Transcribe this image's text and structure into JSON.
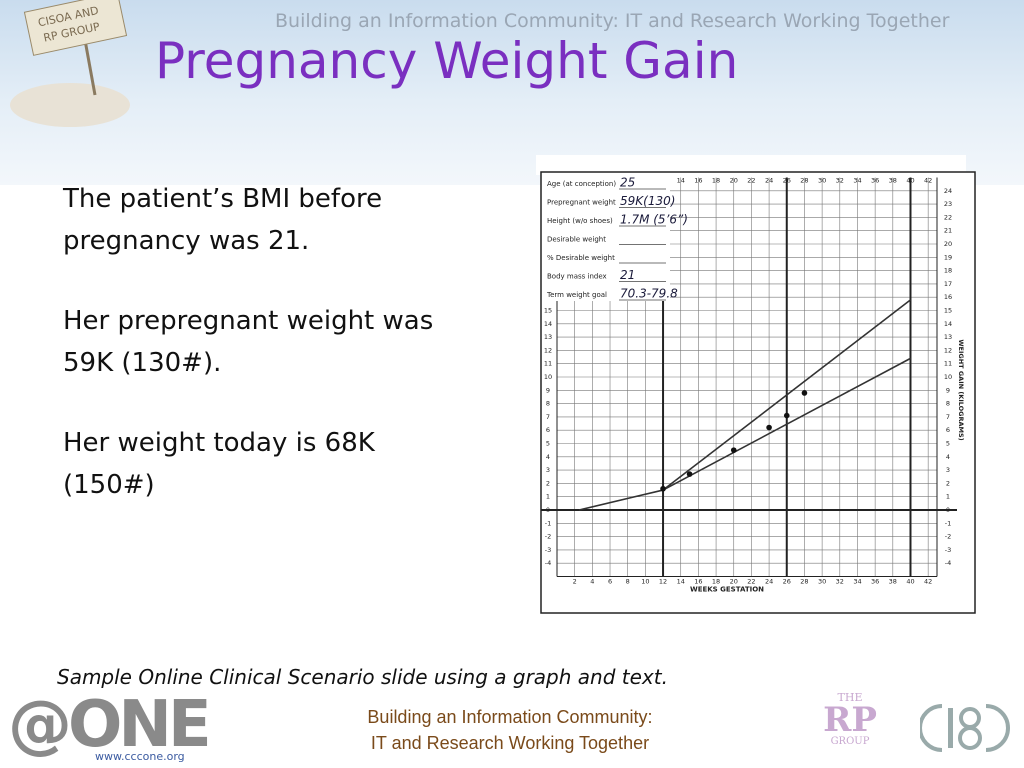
{
  "header_banner": "Building an Information Community:  IT and Research Working Together",
  "sign_text": [
    "CISOA AND",
    "RP GROUP"
  ],
  "title": "Pregnancy Weight Gain",
  "body": [
    "The patient’s BMI before pregnancy was 21.",
    "Her prepregnant weight was 59K (130#).",
    "Her weight today is 68K (150#)"
  ],
  "caption": "Sample Online Clinical Scenario slide using a graph and text.",
  "footer": [
    "Building an Information Community:",
    "IT and Research Working Together"
  ],
  "logos": {
    "one": "@ONE",
    "one_url": "www.cccone.org",
    "rp": [
      "THE",
      "RP",
      "GROUP"
    ]
  },
  "chart_data": {
    "type": "line",
    "form": [
      {
        "label": "Age (at conception)",
        "value": "25"
      },
      {
        "label": "Prepregnant weight",
        "value": "59K(130)"
      },
      {
        "label": "Height (w/o shoes)",
        "value": "1.7M (5’6”)"
      },
      {
        "label": "Desirable weight",
        "value": null
      },
      {
        "label": "% Desirable weight",
        "value": null
      },
      {
        "label": "Body mass index",
        "value": "21"
      },
      {
        "label": "Term weight goal",
        "value": "70.3-79.8"
      }
    ],
    "x_label": "WEEKS GESTATION",
    "y_label": "WEIGHT GAIN (KILOGRAMS)",
    "xlim": [
      0,
      43
    ],
    "xticks": [
      2,
      4,
      6,
      8,
      10,
      12,
      14,
      16,
      18,
      20,
      22,
      24,
      26,
      28,
      30,
      32,
      34,
      36,
      38,
      40,
      42
    ],
    "major_xticks": [
      12,
      26,
      40
    ],
    "ylim": [
      -5,
      25
    ],
    "yticks": [
      -4,
      -3,
      -2,
      -1,
      0,
      1,
      2,
      3,
      4,
      5,
      6,
      7,
      8,
      9,
      10,
      11,
      12,
      13,
      14,
      15
    ],
    "y2lim": [
      -5,
      25
    ],
    "y2ticks": [
      -4,
      -3,
      -2,
      -1,
      0,
      1,
      2,
      3,
      4,
      5,
      6,
      7,
      8,
      9,
      10,
      11,
      12,
      13,
      14,
      15,
      16,
      17,
      18,
      19,
      20,
      21,
      22,
      23,
      24
    ],
    "grid": true,
    "color": "#333333",
    "series": [
      {
        "x": [
          2.5,
          12
        ],
        "values": [
          0,
          1.5
        ]
      },
      {
        "x": [
          12,
          40
        ],
        "values": [
          1.5,
          15.8
        ]
      },
      {
        "x": [
          12,
          40
        ],
        "values": [
          1.5,
          11.4
        ]
      }
    ],
    "points": {
      "x": [
        12,
        15,
        20,
        24,
        26,
        28
      ],
      "values": [
        1.6,
        2.7,
        4.5,
        6.2,
        7.1,
        8.8
      ]
    }
  }
}
